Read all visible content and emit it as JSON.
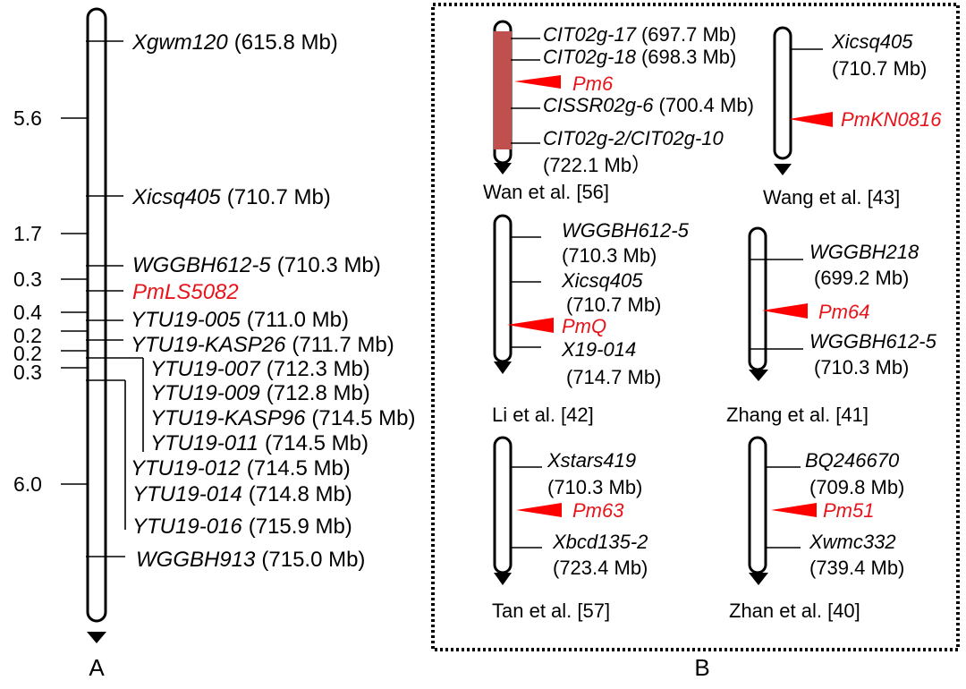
{
  "colors": {
    "gene": "#e8141b",
    "gene_marker": "#ff0000",
    "interval_fill": "#c0504d"
  },
  "panel_a": {
    "label": "A",
    "intervals_cM": [
      "5.6",
      "1.7",
      "0.3",
      "0.4",
      "0.2",
      "0.2",
      "0.3",
      "6.0"
    ],
    "gene": "PmLS5082",
    "markers": [
      {
        "name": "Xgwm120",
        "position": "(615.8 Mb)"
      },
      {
        "name": "Xicsq405",
        "position": "(710.7 Mb)"
      },
      {
        "name": "WGGBH612-5",
        "position": "(710.3 Mb)"
      },
      {
        "name": "YTU19-005",
        "position": "(711.0 Mb)"
      },
      {
        "name": "YTU19-KASP26",
        "position": "(711.7 Mb)"
      },
      {
        "name": "YTU19-007",
        "position": "(712.3 Mb)"
      },
      {
        "name": "YTU19-009",
        "position": "(712.8 Mb)"
      },
      {
        "name": "YTU19-KASP96",
        "position": "(714.5 Mb)"
      },
      {
        "name": "YTU19-011",
        "position": "(714.5 Mb)"
      },
      {
        "name": "YTU19-012",
        "position": "(714.5 Mb)"
      },
      {
        "name": "YTU19-014",
        "position": "(714.8 Mb)"
      },
      {
        "name": "YTU19-016",
        "position": "(715.9 Mb)"
      },
      {
        "name": "WGGBH913",
        "position": "(715.0 Mb)"
      }
    ]
  },
  "panel_b": {
    "label": "B",
    "maps": [
      {
        "citation": "Wan et al. [56]",
        "gene": "Pm6",
        "markers": [
          {
            "name": "CIT02g-17",
            "position": "(697.7 Mb)"
          },
          {
            "name": "CIT02g-18",
            "position": "(698.3 Mb)"
          },
          {
            "name": "CISSR02g-6",
            "position": "(700.4 Mb)"
          },
          {
            "name": "CIT02g-2/CIT02g-10",
            "position": "(722.1 Mb）"
          }
        ]
      },
      {
        "citation": "Wang et al. [43]",
        "gene": "PmKN0816",
        "markers": [
          {
            "name": "Xicsq405",
            "position": "(710.7 Mb)"
          }
        ]
      },
      {
        "citation": "Li et al. [42]",
        "gene": "PmQ",
        "markers": [
          {
            "name": "WGGBH612-5",
            "position": "(710.3 Mb)"
          },
          {
            "name": "Xicsq405",
            "position": "(710.7 Mb)"
          },
          {
            "name": "X19-014",
            "position": "(714.7 Mb)"
          }
        ]
      },
      {
        "citation": "Zhang et al. [41]",
        "gene": "Pm64",
        "markers": [
          {
            "name": "WGGBH218",
            "position": "(699.2 Mb)"
          },
          {
            "name": "WGGBH612-5",
            "position": "(710.3 Mb)"
          }
        ]
      },
      {
        "citation": "Tan et al. [57]",
        "gene": "Pm63",
        "markers": [
          {
            "name": "Xstars419",
            "position": "(710.3 Mb)"
          },
          {
            "name": "Xbcd135-2",
            "position": "(723.4 Mb)"
          }
        ]
      },
      {
        "citation": "Zhan et al. [40]",
        "gene": "Pm51",
        "markers": [
          {
            "name": "BQ246670",
            "position": "(709.8 Mb)"
          },
          {
            "name": "Xwmc332",
            "position": "(739.4 Mb)"
          }
        ]
      }
    ]
  }
}
